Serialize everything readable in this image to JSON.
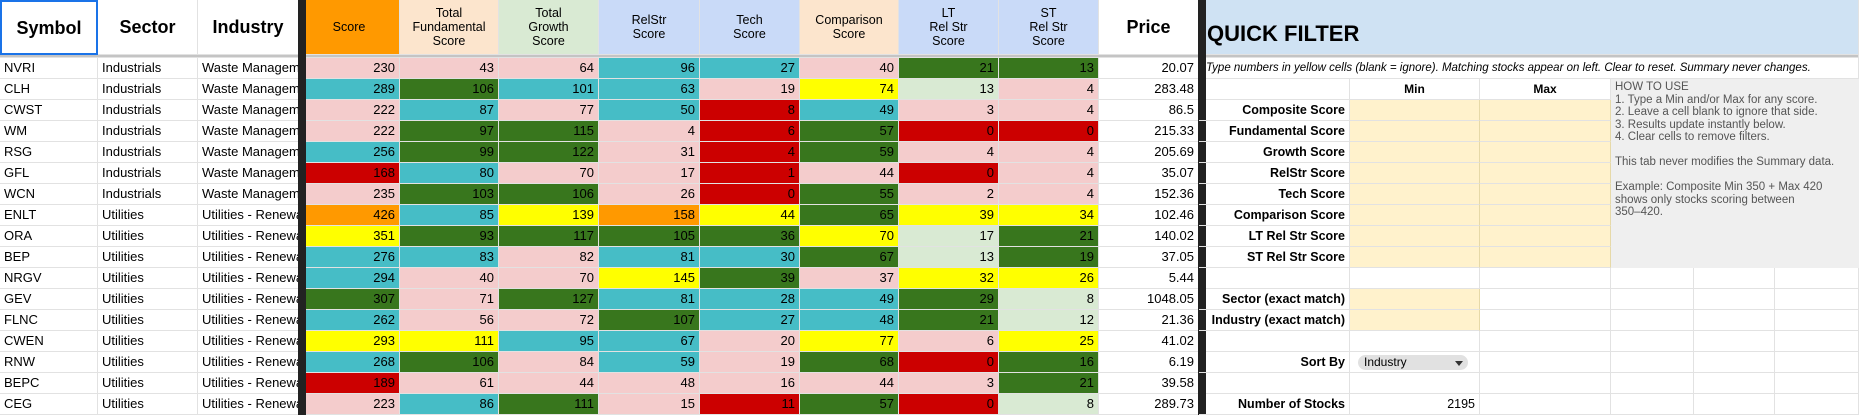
{
  "table": {
    "headers": [
      "Symbol",
      "Sector",
      "Industry",
      "Score",
      "Total\nFundamental\nScore",
      "Total\nGrowth\nScore",
      "RelStr\nScore",
      "Tech\nScore",
      "Comparison\nScore",
      "LT\nRel Str\nScore",
      "ST\nRel Str\nScore",
      "Price"
    ],
    "header_fills": [
      "#ffffff",
      "#ffffff",
      "#ffffff",
      "#ff9900",
      "#fce5cd",
      "#d9ead3",
      "#c9daf8",
      "#c9daf8",
      "#fce5cd",
      "#c9daf8",
      "#c9daf8",
      "#ffffff"
    ],
    "rows": [
      {
        "cells": [
          "NVRI",
          "Industrials",
          "Waste Management",
          230,
          43,
          64,
          96,
          27,
          40,
          21,
          13,
          20.07
        ],
        "fills": [
          "#f4cccc",
          "#f4cccc",
          "#f4cccc",
          "#46bdc6",
          "#46bdc6",
          "#f4cccc",
          "#38761d",
          "#38761d"
        ]
      },
      {
        "cells": [
          "CLH",
          "Industrials",
          "Waste Management",
          289,
          106,
          101,
          63,
          19,
          74,
          13,
          4,
          283.48
        ],
        "fills": [
          "#46bdc6",
          "#38761d",
          "#46bdc6",
          "#46bdc6",
          "#f4cccc",
          "#ffff00",
          "#d9ead3",
          "#f4cccc"
        ]
      },
      {
        "cells": [
          "CWST",
          "Industrials",
          "Waste Management",
          222,
          87,
          77,
          50,
          8,
          49,
          3,
          4,
          86.5
        ],
        "fills": [
          "#f4cccc",
          "#46bdc6",
          "#f4cccc",
          "#46bdc6",
          "#cc0000",
          "#46bdc6",
          "#f4cccc",
          "#f4cccc"
        ]
      },
      {
        "cells": [
          "WM",
          "Industrials",
          "Waste Management",
          222,
          97,
          115,
          4,
          6,
          57,
          0,
          0,
          215.33
        ],
        "fills": [
          "#f4cccc",
          "#38761d",
          "#38761d",
          "#f4cccc",
          "#cc0000",
          "#38761d",
          "#cc0000",
          "#cc0000"
        ]
      },
      {
        "cells": [
          "RSG",
          "Industrials",
          "Waste Management",
          256,
          99,
          122,
          31,
          4,
          59,
          4,
          4,
          205.69
        ],
        "fills": [
          "#46bdc6",
          "#38761d",
          "#38761d",
          "#f4cccc",
          "#cc0000",
          "#38761d",
          "#f4cccc",
          "#f4cccc"
        ]
      },
      {
        "cells": [
          "GFL",
          "Industrials",
          "Waste Management",
          168,
          80,
          70,
          17,
          1,
          44,
          0,
          4,
          35.07
        ],
        "fills": [
          "#cc0000",
          "#46bdc6",
          "#f4cccc",
          "#f4cccc",
          "#cc0000",
          "#f4cccc",
          "#cc0000",
          "#f4cccc"
        ]
      },
      {
        "cells": [
          "WCN",
          "Industrials",
          "Waste Management",
          235,
          103,
          106,
          26,
          0,
          55,
          2,
          4,
          152.36
        ],
        "fills": [
          "#f4cccc",
          "#38761d",
          "#38761d",
          "#f4cccc",
          "#cc0000",
          "#38761d",
          "#f4cccc",
          "#f4cccc"
        ]
      },
      {
        "cells": [
          "ENLT",
          "Utilities",
          "Utilities - Renewable",
          426,
          85,
          139,
          158,
          44,
          65,
          39,
          34,
          102.46
        ],
        "fills": [
          "#ff9900",
          "#46bdc6",
          "#ffff00",
          "#ff9900",
          "#ffff00",
          "#38761d",
          "#ffff00",
          "#ffff00"
        ]
      },
      {
        "cells": [
          "ORA",
          "Utilities",
          "Utilities - Renewable",
          351,
          93,
          117,
          105,
          36,
          70,
          17,
          21,
          140.02
        ],
        "fills": [
          "#ffff00",
          "#38761d",
          "#38761d",
          "#38761d",
          "#38761d",
          "#ffff00",
          "#d9ead3",
          "#38761d"
        ]
      },
      {
        "cells": [
          "BEP",
          "Utilities",
          "Utilities - Renewable",
          276,
          83,
          82,
          81,
          30,
          67,
          13,
          19,
          37.05
        ],
        "fills": [
          "#46bdc6",
          "#46bdc6",
          "#f4cccc",
          "#46bdc6",
          "#46bdc6",
          "#38761d",
          "#d9ead3",
          "#38761d"
        ]
      },
      {
        "cells": [
          "NRGV",
          "Utilities",
          "Utilities - Renewable",
          294,
          40,
          70,
          145,
          39,
          37,
          32,
          26,
          5.44
        ],
        "fills": [
          "#46bdc6",
          "#f4cccc",
          "#f4cccc",
          "#ffff00",
          "#38761d",
          "#f4cccc",
          "#ffff00",
          "#ffff00"
        ]
      },
      {
        "cells": [
          "GEV",
          "Utilities",
          "Utilities - Renewable",
          307,
          71,
          127,
          81,
          28,
          49,
          29,
          8,
          1048.05
        ],
        "fills": [
          "#38761d",
          "#f4cccc",
          "#38761d",
          "#46bdc6",
          "#46bdc6",
          "#46bdc6",
          "#38761d",
          "#d9ead3"
        ]
      },
      {
        "cells": [
          "FLNC",
          "Utilities",
          "Utilities - Renewable",
          262,
          56,
          72,
          107,
          27,
          48,
          21,
          12,
          21.36
        ],
        "fills": [
          "#46bdc6",
          "#f4cccc",
          "#f4cccc",
          "#38761d",
          "#46bdc6",
          "#46bdc6",
          "#38761d",
          "#d9ead3"
        ]
      },
      {
        "cells": [
          "CWEN",
          "Utilities",
          "Utilities - Renewable",
          293,
          111,
          95,
          67,
          20,
          77,
          6,
          25,
          41.02
        ],
        "fills": [
          "#ffff00",
          "#ffff00",
          "#46bdc6",
          "#46bdc6",
          "#f4cccc",
          "#ffff00",
          "#f4cccc",
          "#ffff00"
        ]
      },
      {
        "cells": [
          "RNW",
          "Utilities",
          "Utilities - Renewable",
          268,
          106,
          84,
          59,
          19,
          68,
          0,
          16,
          6.19
        ],
        "fills": [
          "#46bdc6",
          "#38761d",
          "#f4cccc",
          "#46bdc6",
          "#f4cccc",
          "#38761d",
          "#cc0000",
          "#38761d"
        ]
      },
      {
        "cells": [
          "BEPC",
          "Utilities",
          "Utilities - Renewable",
          189,
          61,
          44,
          48,
          16,
          44,
          3,
          21,
          39.58
        ],
        "fills": [
          "#cc0000",
          "#f4cccc",
          "#f4cccc",
          "#f4cccc",
          "#f4cccc",
          "#f4cccc",
          "#f4cccc",
          "#38761d"
        ]
      },
      {
        "cells": [
          "CEG",
          "Utilities",
          "Utilities - Renewable",
          223,
          86,
          111,
          15,
          11,
          57,
          0,
          8,
          289.73
        ],
        "fills": [
          "#f4cccc",
          "#46bdc6",
          "#38761d",
          "#f4cccc",
          "#cc0000",
          "#38761d",
          "#cc0000",
          "#d9ead3"
        ]
      }
    ]
  },
  "quick_filter": {
    "title": "QUICK FILTER",
    "note": "Type numbers in yellow cells (blank = ignore). Matching stocks appear on left. Clear to reset. Summary never changes.",
    "min_label": "Min",
    "max_label": "Max",
    "score_filters": [
      "Composite Score",
      "Fundamental Score",
      "Growth Score",
      "RelStr Score",
      "Tech Score",
      "Comparison Score",
      "LT Rel Str Score",
      "ST Rel Str Score"
    ],
    "text_filters": [
      "Sector (exact match)",
      "Industry (exact match)"
    ],
    "sort_label": "Sort By",
    "sort_value": "Industry",
    "count_label": "Number of Stocks",
    "count": 2195,
    "help": [
      [
        "HOW TO USE",
        "1. Type a Min and/or Max for any score.",
        "2. Leave a cell blank to ignore that side.",
        "3. Results update instantly below.",
        "4. Clear cells to remove filters."
      ],
      [
        "This tab never modifies the Summary data."
      ],
      [
        "Example: Composite Min 350 + Max 420",
        "shows only stocks scoring between",
        "350–420."
      ]
    ]
  }
}
